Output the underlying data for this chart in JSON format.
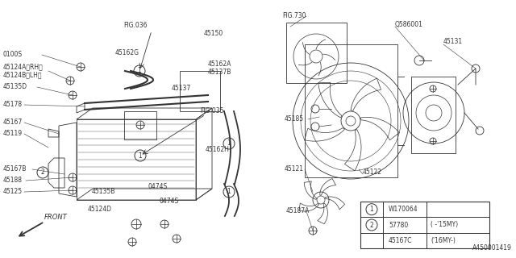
{
  "bg_color": "#ffffff",
  "lc": "#333333",
  "fig_number": "A450001419",
  "legend": [
    {
      "num": "1",
      "part": "W170064",
      "note": ""
    },
    {
      "num": "2",
      "part": "57780",
      "note": "( -'15MY)"
    },
    {
      "num": "2",
      "part": "45167C",
      "note": "('16MY-)"
    }
  ]
}
